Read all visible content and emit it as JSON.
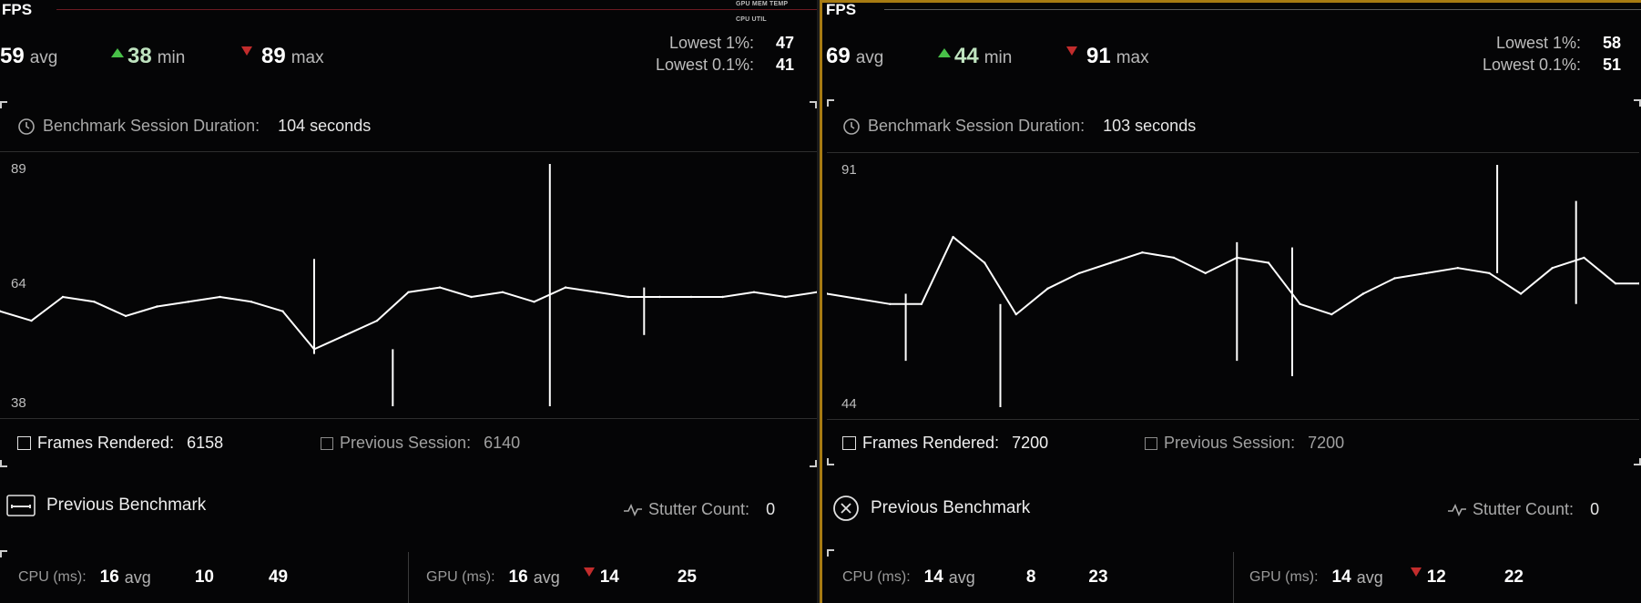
{
  "panels": [
    {
      "fps_title": "FPS",
      "mini_labels": [
        "GPU MEM TEMP",
        "CPU UTIL"
      ],
      "avg": {
        "value": "59",
        "unit": "avg"
      },
      "min": {
        "value": "38",
        "unit": "min"
      },
      "max": {
        "value": "89",
        "unit": "max"
      },
      "lows": [
        {
          "label": "Lowest 1%:",
          "value": "47"
        },
        {
          "label": "Lowest 0.1%:",
          "value": "41"
        }
      ],
      "session_label": "Benchmark Session Duration:",
      "session_value": "104 seconds",
      "chart_yticks": [
        "89",
        "64",
        "38"
      ],
      "frames_label": "Frames Rendered:",
      "frames_value": "6158",
      "prev_session_label": "Previous Session:",
      "prev_session_value": "6140",
      "prev_benchmark_label": "Previous Benchmark",
      "stutter_label": "Stutter Count:",
      "stutter_value": "0",
      "cpu": {
        "label": "CPU (ms):",
        "avg": "16",
        "avg_unit": "avg",
        "min": "10",
        "max": "49"
      },
      "gpu": {
        "label": "GPU (ms):",
        "avg": "16",
        "avg_unit": "avg",
        "min": "14",
        "max": "25"
      }
    },
    {
      "fps_title": "FPS",
      "avg": {
        "value": "69",
        "unit": "avg"
      },
      "min": {
        "value": "44",
        "unit": "min"
      },
      "max": {
        "value": "91",
        "unit": "max"
      },
      "lows": [
        {
          "label": "Lowest 1%:",
          "value": "58"
        },
        {
          "label": "Lowest 0.1%:",
          "value": "51"
        }
      ],
      "session_label": "Benchmark Session Duration:",
      "session_value": "103 seconds",
      "chart_yticks": [
        "91",
        "44"
      ],
      "frames_label": "Frames Rendered:",
      "frames_value": "7200",
      "prev_session_label": "Previous Session:",
      "prev_session_value": "7200",
      "prev_benchmark_label": "Previous Benchmark",
      "stutter_label": "Stutter Count:",
      "stutter_value": "0",
      "cpu": {
        "label": "CPU (ms):",
        "avg": "14",
        "avg_unit": "avg",
        "min": "8",
        "max": "23"
      },
      "gpu": {
        "label": "GPU (ms):",
        "avg": "14",
        "avg_unit": "avg",
        "min": "12",
        "max": "22"
      }
    }
  ],
  "colors": {
    "accent_border": "#a77b12",
    "min_up_arrow": "#48c048",
    "max_down_arrow": "#c22c2c",
    "trace": "#ffffff"
  },
  "chart_data": [
    {
      "type": "line",
      "ylim": [
        38,
        89
      ],
      "yticks": [
        89,
        64,
        38
      ],
      "x": [
        0,
        4,
        8,
        12,
        16,
        20,
        24,
        28,
        32,
        36,
        40,
        44,
        48,
        52,
        56,
        60,
        64,
        68,
        72,
        76,
        80,
        84,
        88,
        92,
        96,
        100,
        104
      ],
      "series": [
        {
          "values": [
            58,
            56,
            61,
            60,
            57,
            59,
            60,
            61,
            60,
            58,
            50,
            53,
            56,
            62,
            63,
            61,
            62,
            60,
            63,
            62,
            61,
            61,
            61,
            61,
            62,
            61,
            62
          ]
        }
      ],
      "spikes": [
        {
          "x": 40,
          "low": 49,
          "high": 69
        },
        {
          "x": 50,
          "low": 38,
          "high": 50
        },
        {
          "x": 70,
          "low": 38,
          "high": 89
        },
        {
          "x": 82,
          "low": 53,
          "high": 63
        }
      ]
    },
    {
      "type": "line",
      "ylim": [
        44,
        91
      ],
      "yticks": [
        91,
        44
      ],
      "x": [
        0,
        4,
        8,
        12,
        16,
        20,
        24,
        28,
        32,
        36,
        40,
        44,
        48,
        52,
        56,
        60,
        64,
        68,
        72,
        76,
        80,
        84,
        88,
        92,
        96,
        100,
        103
      ],
      "series": [
        {
          "values": [
            66,
            65,
            64,
            64,
            77,
            72,
            62,
            67,
            70,
            72,
            74,
            73,
            70,
            73,
            72,
            64,
            62,
            66,
            69,
            70,
            71,
            70,
            66,
            71,
            73,
            68,
            68
          ]
        }
      ],
      "spikes": [
        {
          "x": 10,
          "low": 53,
          "high": 66
        },
        {
          "x": 22,
          "low": 44,
          "high": 64
        },
        {
          "x": 52,
          "low": 53,
          "high": 76
        },
        {
          "x": 59,
          "low": 50,
          "high": 75
        },
        {
          "x": 85,
          "low": 70,
          "high": 91
        },
        {
          "x": 95,
          "low": 64,
          "high": 84
        }
      ]
    }
  ]
}
